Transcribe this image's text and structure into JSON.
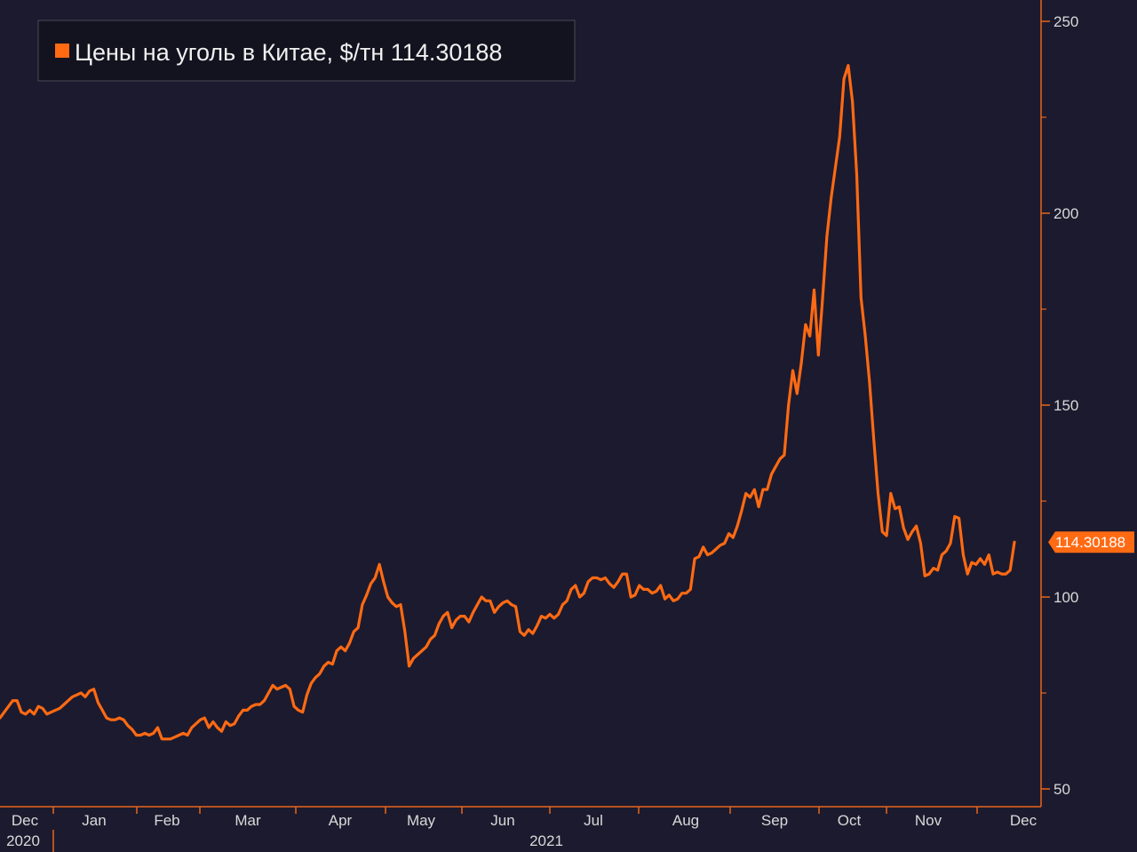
{
  "colors": {
    "background": "#1c1a2e",
    "series": "#ff6a13",
    "axis": "#e8651a",
    "text": "#d9d9d9"
  },
  "chart_data": {
    "type": "line",
    "legend": {
      "position": "top-left",
      "label": "Цены на уголь в Китае, $/тн 114.30188"
    },
    "last_value_label": "114.30188",
    "grid": false,
    "ylim": [
      50,
      250
    ],
    "y_ticks": [
      50,
      100,
      150,
      200,
      250
    ],
    "x_months": [
      "Dec",
      "Jan",
      "Feb",
      "Mar",
      "Apr",
      "May",
      "Jun",
      "Jul",
      "Aug",
      "Sep",
      "Oct",
      "Nov",
      "Dec"
    ],
    "x_years": [
      "2020",
      "2021"
    ],
    "series": [
      {
        "values": [
          [
            0,
            68.5
          ],
          [
            1,
            70
          ],
          [
            2,
            71.5
          ],
          [
            3,
            73
          ],
          [
            4,
            73
          ],
          [
            5,
            70
          ],
          [
            6,
            69.5
          ],
          [
            7,
            70.5
          ],
          [
            8,
            69.5
          ],
          [
            9,
            71.5
          ],
          [
            10,
            71
          ],
          [
            11,
            69.5
          ],
          [
            12,
            70
          ],
          [
            13,
            70.5
          ],
          [
            14,
            71
          ],
          [
            15,
            72
          ],
          [
            16,
            73
          ],
          [
            17,
            74
          ],
          [
            18,
            74.5
          ],
          [
            19,
            75
          ],
          [
            20,
            74
          ],
          [
            21,
            75.5
          ],
          [
            22,
            76
          ],
          [
            23,
            72.5
          ],
          [
            24,
            70.5
          ],
          [
            25,
            68.5
          ],
          [
            26,
            68
          ],
          [
            27,
            68
          ],
          [
            28,
            68.5
          ],
          [
            29,
            68
          ],
          [
            30,
            66.5
          ],
          [
            31,
            65.5
          ],
          [
            32,
            64
          ],
          [
            33,
            64
          ],
          [
            34,
            64.5
          ],
          [
            35,
            64
          ],
          [
            36,
            64.5
          ],
          [
            37,
            66
          ],
          [
            38,
            63
          ],
          [
            39,
            63
          ],
          [
            40,
            63
          ],
          [
            41,
            63.5
          ],
          [
            42,
            64
          ],
          [
            43,
            64.5
          ],
          [
            44,
            64
          ],
          [
            45,
            66
          ],
          [
            46,
            67
          ],
          [
            47,
            68
          ],
          [
            48,
            68.5
          ],
          [
            49,
            66
          ],
          [
            50,
            67.5
          ],
          [
            51,
            66
          ],
          [
            52,
            65
          ],
          [
            53,
            67.5
          ],
          [
            54,
            66.5
          ],
          [
            55,
            67
          ],
          [
            56,
            69
          ],
          [
            57,
            70.5
          ],
          [
            58,
            70.5
          ],
          [
            59,
            71.5
          ],
          [
            60,
            72
          ],
          [
            61,
            72
          ],
          [
            62,
            73
          ],
          [
            63,
            75
          ],
          [
            64,
            77
          ],
          [
            65,
            76
          ],
          [
            66,
            76.5
          ],
          [
            67,
            77
          ],
          [
            68,
            76
          ],
          [
            69,
            71.5
          ],
          [
            70,
            70.5
          ],
          [
            71,
            70
          ],
          [
            72,
            74.5
          ],
          [
            73,
            77.5
          ],
          [
            74,
            79
          ],
          [
            75,
            80
          ],
          [
            76,
            82
          ],
          [
            77,
            83
          ],
          [
            78,
            82.5
          ],
          [
            79,
            86
          ],
          [
            80,
            87
          ],
          [
            81,
            86
          ],
          [
            82,
            88
          ],
          [
            83,
            91
          ],
          [
            84,
            92
          ],
          [
            85,
            98
          ],
          [
            86,
            100.5
          ],
          [
            87,
            103.5
          ],
          [
            88,
            105
          ],
          [
            89,
            108.5
          ],
          [
            90,
            104
          ],
          [
            91,
            100
          ],
          [
            92,
            98.5
          ],
          [
            93,
            97.5
          ],
          [
            94,
            98
          ],
          [
            95,
            91
          ],
          [
            96,
            82
          ],
          [
            97,
            84
          ],
          [
            98,
            85
          ],
          [
            99,
            86
          ],
          [
            100,
            87
          ],
          [
            101,
            89
          ],
          [
            102,
            90
          ],
          [
            103,
            93
          ],
          [
            104,
            95
          ],
          [
            105,
            96
          ],
          [
            106,
            92
          ],
          [
            107,
            94
          ],
          [
            108,
            95
          ],
          [
            109,
            95
          ],
          [
            110,
            93.5
          ],
          [
            111,
            96
          ],
          [
            112,
            98
          ],
          [
            113,
            100
          ],
          [
            114,
            99
          ],
          [
            115,
            99
          ],
          [
            116,
            96
          ],
          [
            117,
            97.5
          ],
          [
            118,
            98.5
          ],
          [
            119,
            99
          ],
          [
            120,
            98
          ],
          [
            121,
            97.5
          ],
          [
            122,
            91
          ],
          [
            123,
            90
          ],
          [
            124,
            91.5
          ],
          [
            125,
            90.5
          ],
          [
            126,
            92.5
          ],
          [
            127,
            95
          ],
          [
            128,
            94.5
          ],
          [
            129,
            95.5
          ],
          [
            130,
            94.5
          ],
          [
            131,
            95.5
          ],
          [
            132,
            98
          ],
          [
            133,
            99
          ],
          [
            134,
            102
          ],
          [
            135,
            103
          ],
          [
            136,
            100
          ],
          [
            137,
            101
          ],
          [
            138,
            104
          ],
          [
            139,
            105
          ],
          [
            140,
            105
          ],
          [
            141,
            104.5
          ],
          [
            142,
            105
          ],
          [
            143,
            103.5
          ],
          [
            144,
            102.5
          ],
          [
            145,
            104
          ],
          [
            146,
            106
          ],
          [
            147,
            106
          ],
          [
            148,
            100
          ],
          [
            149,
            100.5
          ],
          [
            150,
            103
          ],
          [
            151,
            102
          ],
          [
            152,
            102
          ],
          [
            153,
            101
          ],
          [
            154,
            101.5
          ],
          [
            155,
            103
          ],
          [
            156,
            99.5
          ],
          [
            157,
            100.5
          ],
          [
            158,
            99
          ],
          [
            159,
            99.5
          ],
          [
            160,
            101
          ],
          [
            161,
            101
          ],
          [
            162,
            102
          ],
          [
            163,
            110
          ],
          [
            164,
            110.5
          ],
          [
            165,
            113
          ],
          [
            166,
            111
          ],
          [
            167,
            111.5
          ],
          [
            168,
            112.5
          ],
          [
            169,
            113.5
          ],
          [
            170,
            114
          ],
          [
            171,
            116.5
          ],
          [
            172,
            115.5
          ],
          [
            173,
            118.5
          ],
          [
            174,
            122.5
          ],
          [
            175,
            127
          ],
          [
            176,
            126
          ],
          [
            177,
            128
          ],
          [
            178,
            123.5
          ],
          [
            179,
            128
          ],
          [
            180,
            128
          ],
          [
            181,
            132
          ],
          [
            182,
            134
          ],
          [
            183,
            136
          ],
          [
            184,
            137
          ],
          [
            185,
            150
          ],
          [
            186,
            159
          ],
          [
            187,
            153
          ],
          [
            188,
            161
          ],
          [
            189,
            171
          ],
          [
            190,
            168
          ],
          [
            191,
            180
          ],
          [
            192,
            163
          ],
          [
            193,
            178
          ],
          [
            194,
            194
          ],
          [
            195,
            204
          ],
          [
            196,
            212
          ],
          [
            197,
            220
          ],
          [
            198,
            235
          ],
          [
            199,
            238.5
          ],
          [
            200,
            229
          ],
          [
            201,
            210
          ],
          [
            202,
            178
          ],
          [
            203,
            168
          ],
          [
            204,
            156
          ],
          [
            205,
            141
          ],
          [
            206,
            127
          ],
          [
            207,
            117
          ],
          [
            208,
            116
          ],
          [
            209,
            127
          ],
          [
            210,
            123
          ],
          [
            211,
            123.5
          ],
          [
            212,
            118
          ],
          [
            213,
            115
          ],
          [
            214,
            117
          ],
          [
            215,
            118.5
          ],
          [
            216,
            114
          ],
          [
            217,
            105.5
          ],
          [
            218,
            106
          ],
          [
            219,
            107.5
          ],
          [
            220,
            107
          ],
          [
            221,
            111
          ],
          [
            222,
            112
          ],
          [
            223,
            114
          ],
          [
            224,
            121
          ],
          [
            225,
            120.5
          ],
          [
            226,
            111
          ],
          [
            227,
            106
          ],
          [
            228,
            109
          ],
          [
            229,
            108.5
          ],
          [
            230,
            110
          ],
          [
            231,
            108.5
          ],
          [
            232,
            111
          ],
          [
            233,
            106
          ],
          [
            234,
            106.5
          ],
          [
            235,
            106
          ],
          [
            236,
            106
          ],
          [
            237,
            107
          ],
          [
            238,
            114.3
          ]
        ]
      }
    ]
  }
}
